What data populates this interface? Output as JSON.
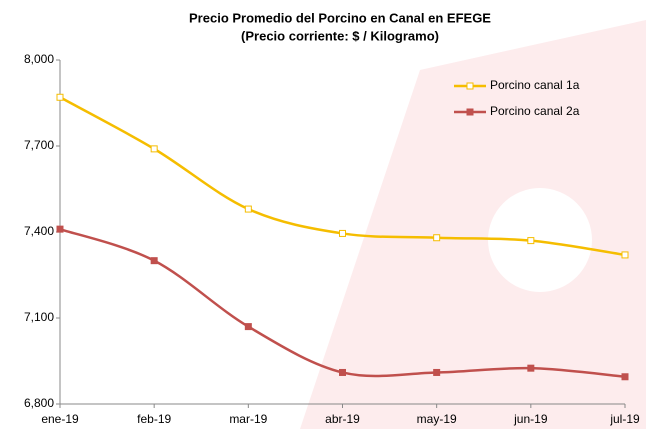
{
  "chart_data": {
    "type": "line",
    "title": "Precio Promedio del Porcino en Canal en EFEGE",
    "subtitle": "(Precio corriente: $ / Kilogramo)",
    "categories": [
      "ene-19",
      "feb-19",
      "mar-19",
      "abr-19",
      "may-19",
      "jun-19",
      "jul-19"
    ],
    "series": [
      {
        "name": "Porcino canal 1a",
        "color": "#f5bd00",
        "values": [
          7870,
          7690,
          7480,
          7395,
          7380,
          7370,
          7320
        ]
      },
      {
        "name": "Porcino canal 2a",
        "color": "#c0504d",
        "values": [
          7410,
          7300,
          7070,
          6910,
          6910,
          6925,
          6895
        ]
      }
    ],
    "ylim": [
      6800,
      8000
    ],
    "yticks": [
      {
        "value": 6800,
        "label": "6,800"
      },
      {
        "value": 7100,
        "label": "7,100"
      },
      {
        "value": 7400,
        "label": "7,400"
      },
      {
        "value": 7700,
        "label": "7,700"
      },
      {
        "value": 8000,
        "label": "8,000"
      }
    ],
    "legend": "top-right",
    "smooth": true
  }
}
